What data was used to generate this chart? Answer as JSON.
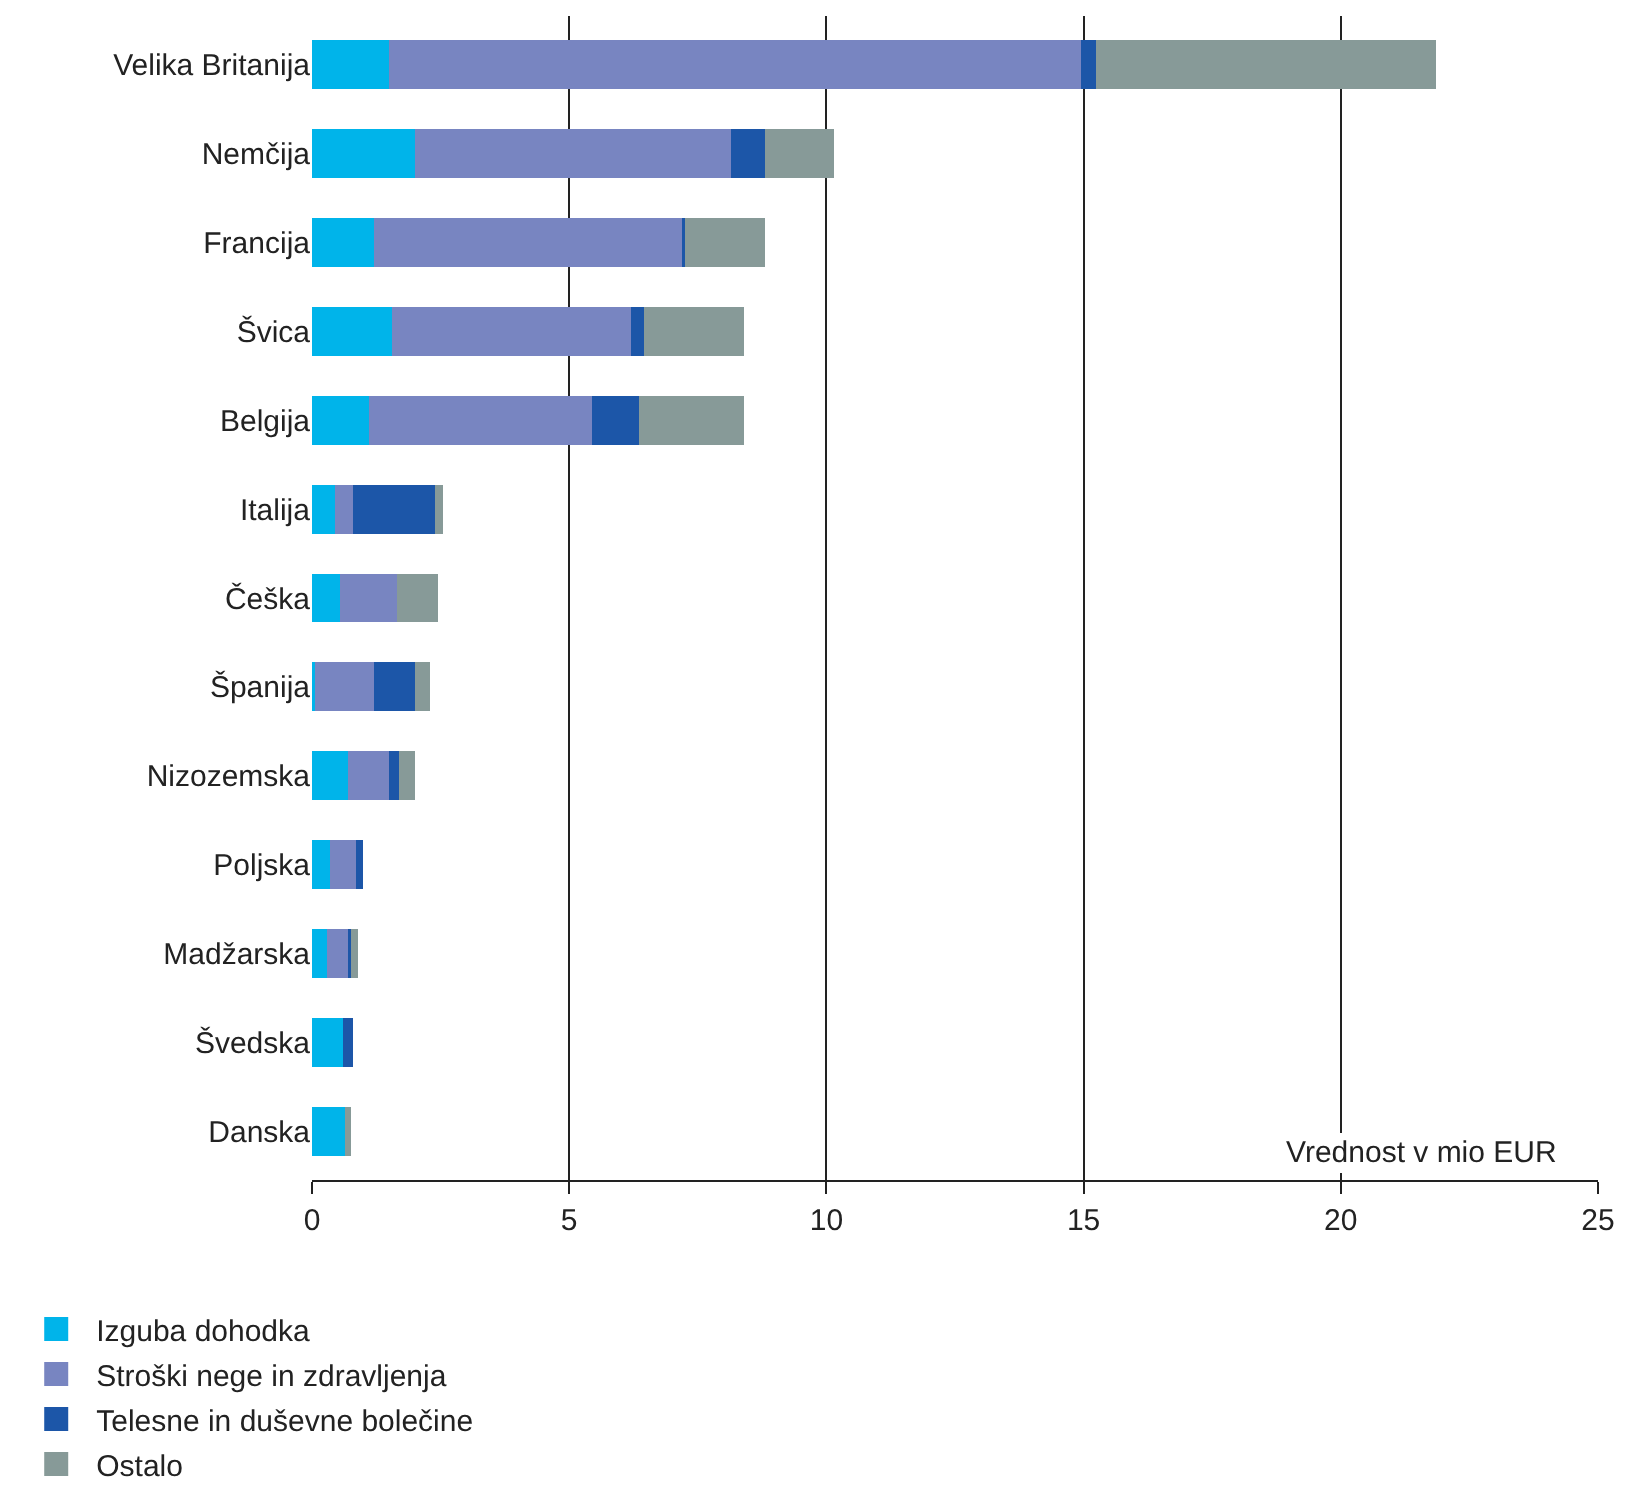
{
  "chart_data": {
    "type": "bar",
    "orientation": "horizontal",
    "stacked": true,
    "xlabel": "Vrednost v mio EUR",
    "categories": [
      "Velika Britanija",
      "Nemčija",
      "Francija",
      "Švica",
      "Belgija",
      "Italija",
      "Češka",
      "Španija",
      "Nizozemska",
      "Poljska",
      "Madžarska",
      "Švedska",
      "Danska"
    ],
    "series": [
      {
        "name": "Izguba dohodka",
        "color": "#00b4ea",
        "values": [
          1.5,
          2.0,
          1.2,
          1.55,
          1.1,
          0.45,
          0.55,
          0.05,
          0.7,
          0.35,
          0.3,
          0.6,
          0.65
        ]
      },
      {
        "name": "Stroški nege in zdravljenja",
        "color": "#7885c1",
        "values": [
          13.45,
          6.15,
          6.0,
          4.65,
          4.35,
          0.35,
          1.1,
          1.15,
          0.8,
          0.5,
          0.4,
          0,
          0
        ]
      },
      {
        "name": "Telesne in duševne bolečine",
        "color": "#1c56a8",
        "values": [
          0.3,
          0.65,
          0.05,
          0.25,
          0.9,
          1.6,
          0,
          0.8,
          0.2,
          0.15,
          0.05,
          0.2,
          0
        ]
      },
      {
        "name": "Ostalo",
        "color": "#879a98",
        "values": [
          6.6,
          1.35,
          1.55,
          1.95,
          2.05,
          0.15,
          0.8,
          0.3,
          0.3,
          0,
          0.15,
          0,
          0.1
        ]
      }
    ],
    "xlim": [
      0,
      25
    ],
    "xticks": [
      0,
      5,
      10,
      15,
      20,
      25
    ],
    "grid": "x",
    "legend": "bottom left"
  }
}
